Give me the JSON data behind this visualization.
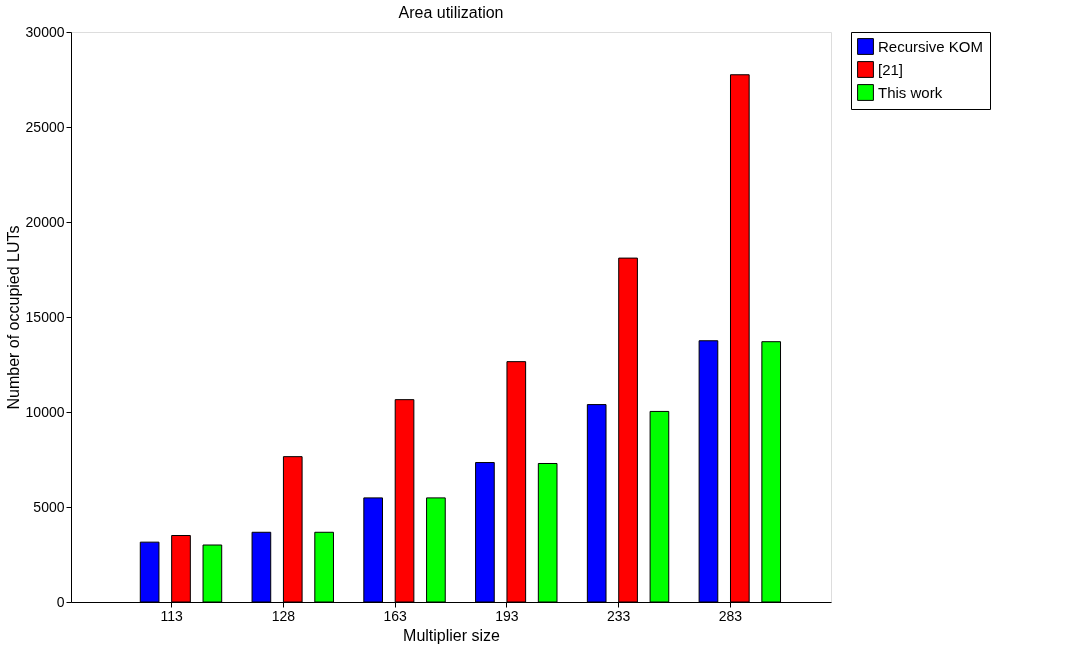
{
  "chart_data": {
    "type": "bar",
    "title": "Area utilization",
    "xlabel": "Multiplier size",
    "ylabel": "Number of occupied LUTs",
    "categories": [
      "113",
      "128",
      "163",
      "193",
      "233",
      "283"
    ],
    "series": [
      {
        "name": "Recursive KOM",
        "color": "#0000ff",
        "values": [
          3150,
          3670,
          5480,
          7340,
          10390,
          13750
        ]
      },
      {
        "name": "[21]",
        "color": "#ff0000",
        "values": [
          3500,
          7650,
          10650,
          12650,
          18100,
          27750
        ]
      },
      {
        "name": "This work",
        "color": "#00ff00",
        "values": [
          3000,
          3670,
          5480,
          7290,
          10030,
          13700
        ]
      }
    ],
    "ylim": [
      0,
      30000
    ],
    "yticks": [
      0,
      5000,
      10000,
      15000,
      20000,
      25000,
      30000
    ],
    "grid": false,
    "legend": "right"
  }
}
